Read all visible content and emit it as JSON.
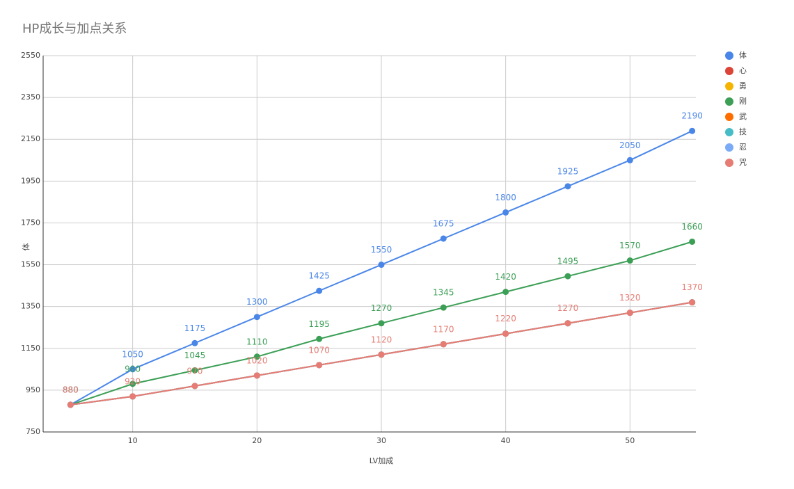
{
  "chart_data": {
    "type": "line",
    "title": "HP成长与加点关系",
    "x_label": "LV加成",
    "y_label": "体",
    "x": [
      5,
      10,
      15,
      20,
      25,
      30,
      35,
      40,
      45,
      50,
      55
    ],
    "series": [
      {
        "name": "体",
        "color": "#4a86e8",
        "values": [
          880,
          1050,
          1175,
          1300,
          1425,
          1550,
          1675,
          1800,
          1925,
          2050,
          2190
        ],
        "labels": true
      },
      {
        "name": "心",
        "color": "#db4437",
        "values": [
          880,
          920,
          970,
          1020,
          1070,
          1120,
          1170,
          1220,
          1270,
          1320,
          1370
        ],
        "labels": false
      },
      {
        "name": "勇",
        "color": "#f4b400",
        "values": [
          880,
          920,
          970,
          1020,
          1070,
          1120,
          1170,
          1220,
          1270,
          1320,
          1370
        ],
        "labels": false
      },
      {
        "name": "刚",
        "color": "#3c9f56",
        "values": [
          880,
          980,
          1045,
          1110,
          1195,
          1270,
          1345,
          1420,
          1495,
          1570,
          1660
        ],
        "labels": true
      },
      {
        "name": "武",
        "color": "#ff6d00",
        "values": [
          880,
          920,
          970,
          1020,
          1070,
          1120,
          1170,
          1220,
          1270,
          1320,
          1370
        ],
        "labels": false
      },
      {
        "name": "技",
        "color": "#46bdc6",
        "values": [
          880,
          920,
          970,
          1020,
          1070,
          1120,
          1170,
          1220,
          1270,
          1320,
          1370
        ],
        "labels": false
      },
      {
        "name": "忍",
        "color": "#7baaf7",
        "values": [
          880,
          920,
          970,
          1020,
          1070,
          1120,
          1170,
          1220,
          1270,
          1320,
          1370
        ],
        "labels": false
      },
      {
        "name": "咒",
        "color": "#e67c73",
        "values": [
          880,
          920,
          970,
          1020,
          1070,
          1120,
          1170,
          1220,
          1270,
          1320,
          1370
        ],
        "labels": true
      }
    ],
    "xlim": [
      2.8,
      55.3
    ],
    "xticks": [
      10,
      20,
      30,
      40,
      50
    ],
    "ylim": [
      750,
      2550
    ],
    "yticks": [
      750,
      950,
      1150,
      1350,
      1550,
      1750,
      1950,
      2150,
      2350,
      2550
    ],
    "grid": true,
    "legend": "right"
  }
}
